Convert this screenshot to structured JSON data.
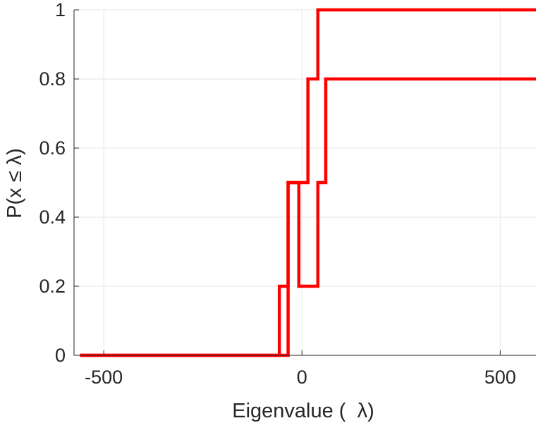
{
  "chart_data": {
    "type": "line",
    "title": "",
    "xlabel": "Eigenvalue (  λ)",
    "ylabel": "P(x ≤ λ)",
    "xlim": [
      -575,
      590
    ],
    "ylim": [
      0,
      1
    ],
    "xticks": [
      -500,
      0,
      500
    ],
    "xtick_labels": [
      "-500",
      "0",
      "500"
    ],
    "yticks": [
      0,
      0.2,
      0.4,
      0.6,
      0.8,
      1
    ],
    "ytick_labels": [
      "0",
      "0.2",
      "0.4",
      "0.6",
      "0.8",
      "1"
    ],
    "grid": true,
    "line_color": "#ff0000",
    "step": true,
    "series": [
      {
        "x": [
          -560,
          -57,
          -57,
          -35,
          -35,
          15,
          15,
          40,
          40,
          60,
          60,
          590
        ],
        "y": [
          0,
          0,
          0.2,
          0.2,
          0.5,
          0.5,
          0.8,
          0.8,
          1,
          1,
          1,
          1
        ]
      },
      {
        "x": [
          -560,
          -35,
          -35,
          -8,
          -8,
          40,
          40,
          60,
          60,
          590
        ],
        "y": [
          0,
          0,
          0.5,
          0.5,
          0.2,
          0.2,
          0.5,
          0.5,
          0.8,
          0.8
        ]
      }
    ]
  }
}
